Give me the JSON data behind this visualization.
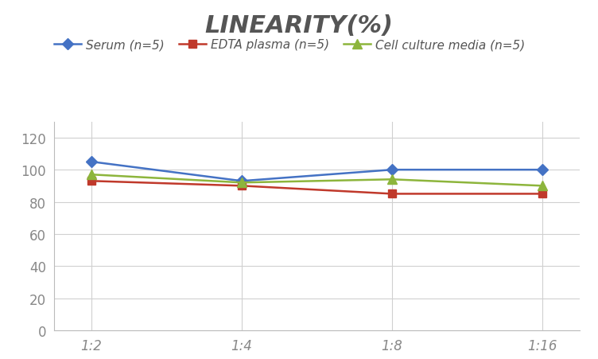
{
  "title": "LINEARITY(%)",
  "x_labels": [
    "1:2",
    "1:4",
    "1:8",
    "1:16"
  ],
  "x_positions": [
    0,
    1,
    2,
    3
  ],
  "series": [
    {
      "label": "Serum (n=5)",
      "values": [
        105,
        93,
        100,
        100
      ],
      "color": "#4472C4",
      "marker": "D",
      "marker_size": 7,
      "linewidth": 1.8
    },
    {
      "label": "EDTA plasma (n=5)",
      "values": [
        93,
        90,
        85,
        85
      ],
      "color": "#C0392B",
      "marker": "s",
      "marker_size": 7,
      "linewidth": 1.8
    },
    {
      "label": "Cell culture media (n=5)",
      "values": [
        97,
        92,
        94,
        90
      ],
      "color": "#8DB53C",
      "marker": "^",
      "marker_size": 8,
      "linewidth": 1.8
    }
  ],
  "ylim": [
    0,
    130
  ],
  "yticks": [
    0,
    20,
    40,
    60,
    80,
    100,
    120
  ],
  "background_color": "#ffffff",
  "grid_color": "#d0d0d0",
  "title_fontsize": 22,
  "legend_fontsize": 11,
  "tick_fontsize": 12
}
